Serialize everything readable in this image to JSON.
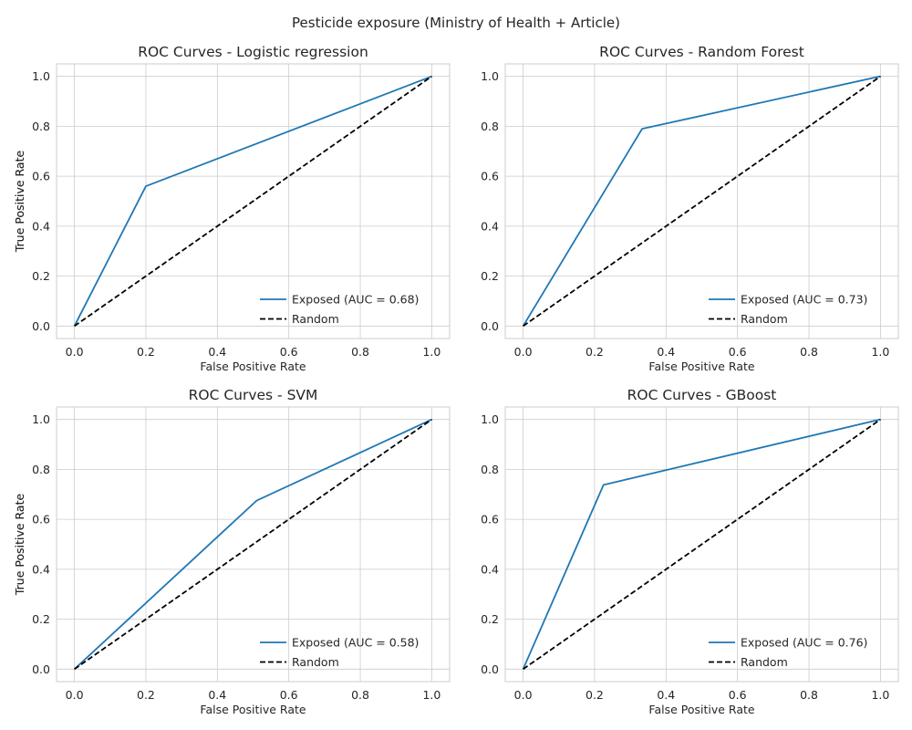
{
  "figure_title": "Pesticide exposure (Ministry of Health + Article)",
  "chart_data": [
    {
      "type": "line",
      "title": "ROC Curves - Logistic regression",
      "xlabel": "False Positive Rate",
      "ylabel": "True Positive Rate",
      "xlim": [
        -0.05,
        1.05
      ],
      "ylim": [
        -0.05,
        1.05
      ],
      "xticks": [
        "0.0",
        "0.2",
        "0.4",
        "0.6",
        "0.8",
        "1.0"
      ],
      "yticks": [
        "0.0",
        "0.2",
        "0.4",
        "0.6",
        "0.8",
        "1.0"
      ],
      "grid": true,
      "legend_position": "lower right",
      "series": [
        {
          "name": "Exposed (AUC = 0.68)",
          "color": "#1f77b4",
          "style": "solid",
          "x": [
            0.0,
            0.2,
            1.0
          ],
          "y": [
            0.0,
            0.56,
            1.0
          ]
        },
        {
          "name": "Random",
          "color": "#000000",
          "style": "dashed",
          "x": [
            0.0,
            1.0
          ],
          "y": [
            0.0,
            1.0
          ]
        }
      ]
    },
    {
      "type": "line",
      "title": "ROC Curves - Random Forest",
      "xlabel": "False Positive Rate",
      "ylabel": "True Positive Rate",
      "xlim": [
        -0.05,
        1.05
      ],
      "ylim": [
        -0.05,
        1.05
      ],
      "xticks": [
        "0.0",
        "0.2",
        "0.4",
        "0.6",
        "0.8",
        "1.0"
      ],
      "yticks": [
        "0.0",
        "0.2",
        "0.4",
        "0.6",
        "0.8",
        "1.0"
      ],
      "grid": true,
      "legend_position": "lower right",
      "series": [
        {
          "name": "Exposed (AUC = 0.73)",
          "color": "#1f77b4",
          "style": "solid",
          "x": [
            0.0,
            0.333,
            1.0
          ],
          "y": [
            0.0,
            0.79,
            1.0
          ]
        },
        {
          "name": "Random",
          "color": "#000000",
          "style": "dashed",
          "x": [
            0.0,
            1.0
          ],
          "y": [
            0.0,
            1.0
          ]
        }
      ]
    },
    {
      "type": "line",
      "title": "ROC Curves - SVM",
      "xlabel": "False Positive Rate",
      "ylabel": "True Positive Rate",
      "xlim": [
        -0.05,
        1.05
      ],
      "ylim": [
        -0.05,
        1.05
      ],
      "xticks": [
        "0.0",
        "0.2",
        "0.4",
        "0.6",
        "0.8",
        "1.0"
      ],
      "yticks": [
        "0.0",
        "0.2",
        "0.4",
        "0.6",
        "0.8",
        "1.0"
      ],
      "grid": true,
      "legend_position": "lower right",
      "series": [
        {
          "name": "Exposed (AUC = 0.58)",
          "color": "#1f77b4",
          "style": "solid",
          "x": [
            0.0,
            0.51,
            1.0
          ],
          "y": [
            0.0,
            0.675,
            1.0
          ]
        },
        {
          "name": "Random",
          "color": "#000000",
          "style": "dashed",
          "x": [
            0.0,
            1.0
          ],
          "y": [
            0.0,
            1.0
          ]
        }
      ]
    },
    {
      "type": "line",
      "title": "ROC Curves - GBoost",
      "xlabel": "False Positive Rate",
      "ylabel": "True Positive Rate",
      "xlim": [
        -0.05,
        1.05
      ],
      "ylim": [
        -0.05,
        1.05
      ],
      "xticks": [
        "0.0",
        "0.2",
        "0.4",
        "0.6",
        "0.8",
        "1.0"
      ],
      "yticks": [
        "0.0",
        "0.2",
        "0.4",
        "0.6",
        "0.8",
        "1.0"
      ],
      "grid": true,
      "legend_position": "lower right",
      "series": [
        {
          "name": "Exposed (AUC = 0.76)",
          "color": "#1f77b4",
          "style": "solid",
          "x": [
            0.0,
            0.225,
            1.0
          ],
          "y": [
            0.0,
            0.738,
            1.0
          ]
        },
        {
          "name": "Random",
          "color": "#000000",
          "style": "dashed",
          "x": [
            0.0,
            1.0
          ],
          "y": [
            0.0,
            1.0
          ]
        }
      ]
    }
  ]
}
